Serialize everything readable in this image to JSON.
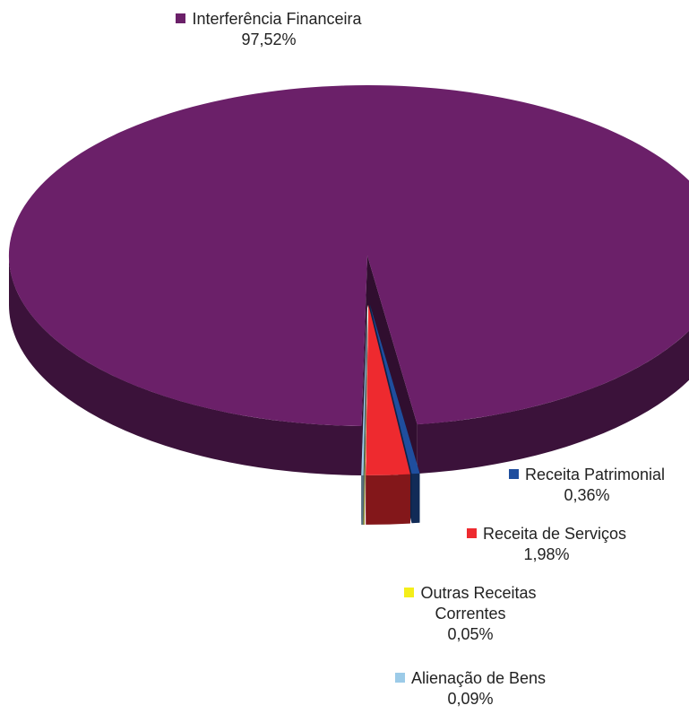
{
  "chart_data": {
    "type": "pie",
    "categories": [
      "Interferência Financeira",
      "Receita Patrimonial",
      "Receita de Serviços",
      "Outras Receitas Correntes",
      "Alienação de Bens"
    ],
    "values": [
      97.52,
      0.36,
      1.98,
      0.05,
      0.09
    ],
    "value_labels": [
      "97,52%",
      "0,36%",
      "1,98%",
      "0,05%",
      "0,09%"
    ],
    "colors": [
      "#6b2069",
      "#1f4e9e",
      "#ee2a2f",
      "#f4ee1a",
      "#9ccbe8"
    ]
  }
}
